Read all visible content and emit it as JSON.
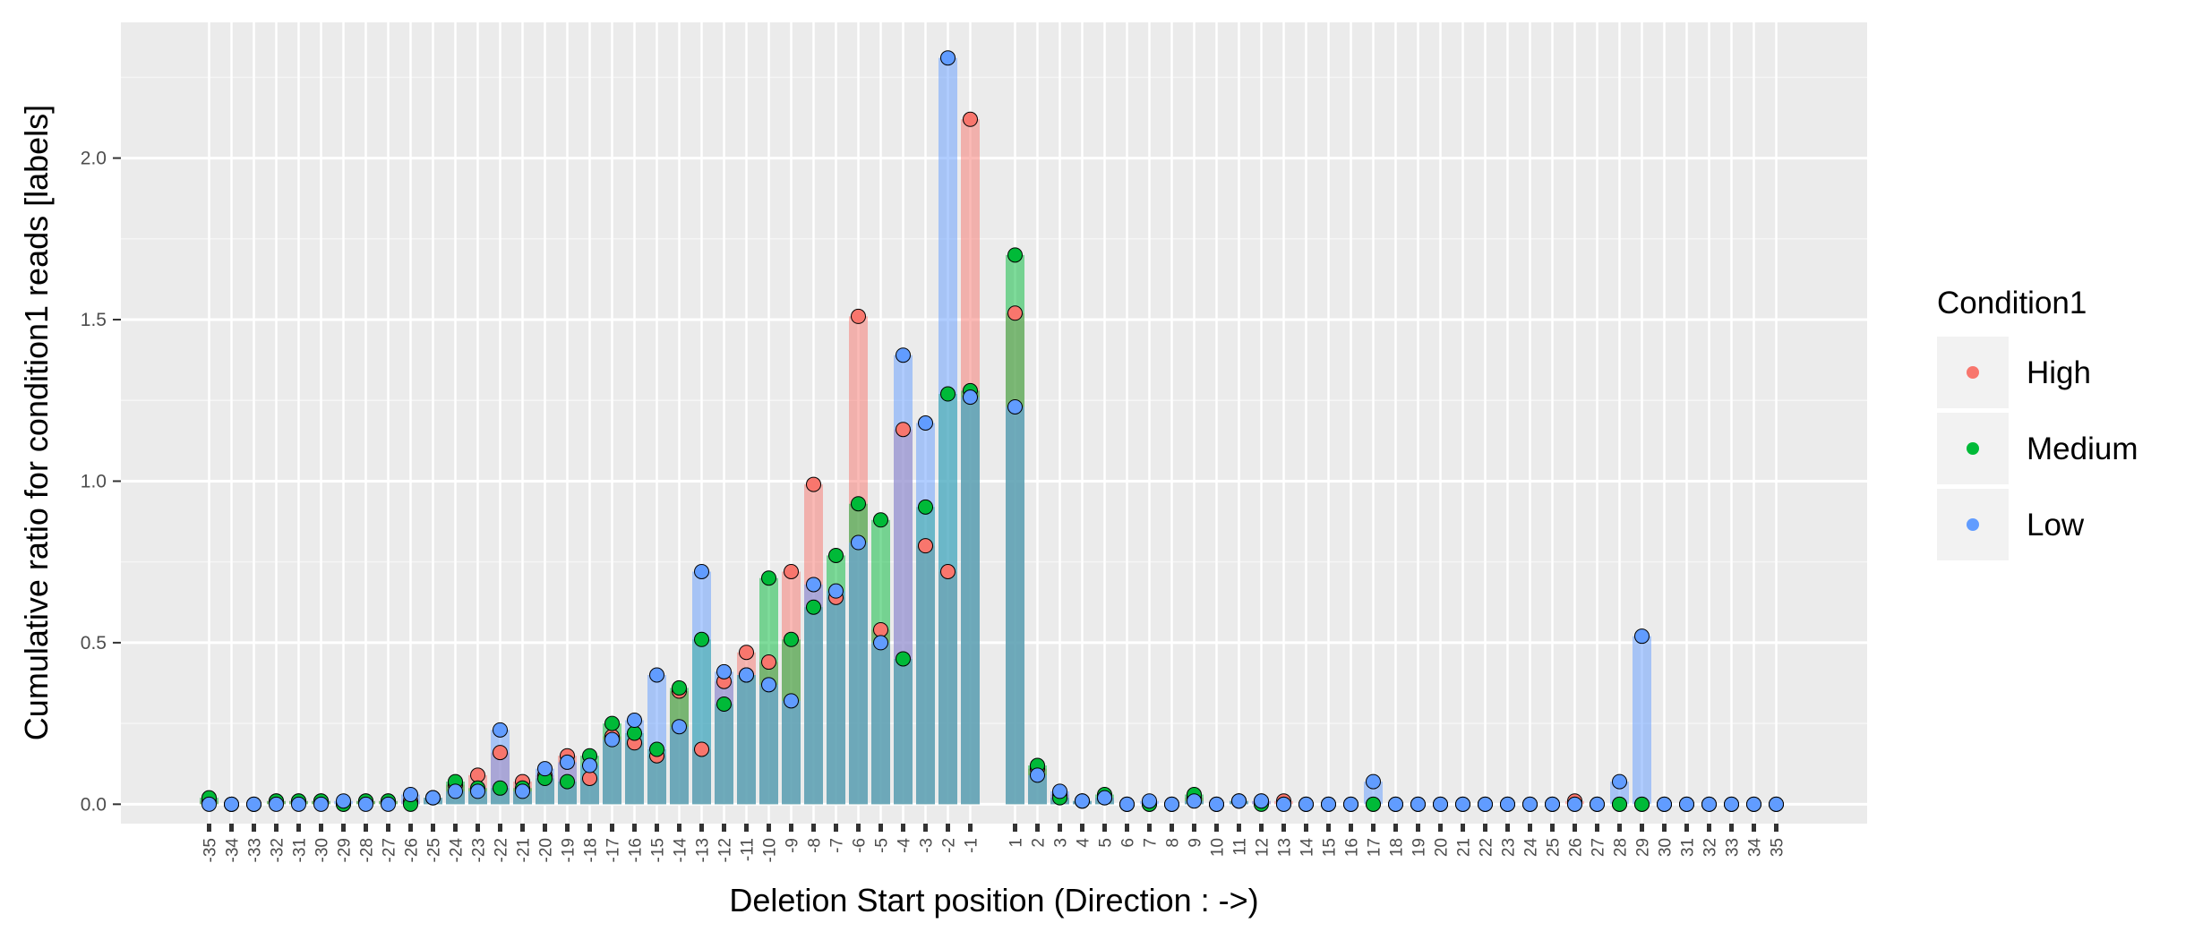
{
  "chart_data": {
    "type": "bar",
    "xlabel": "Deletion Start position (Direction : ->)",
    "ylabel": "Cumulative ratio for condition1 reads [labels]",
    "ylim": [
      -0.06,
      2.42
    ],
    "yticks": [
      "0.0",
      "0.5",
      "1.0",
      "1.5",
      "2.0"
    ],
    "ytick_values": [
      0,
      0.5,
      1.0,
      1.5,
      2.0
    ],
    "grid": true,
    "legend_position": "right",
    "legend_title": "Condition1",
    "categories": [
      "-35",
      "-34",
      "-33",
      "-32",
      "-31",
      "-30",
      "-29",
      "-28",
      "-27",
      "-26",
      "-25",
      "-24",
      "-23",
      "-22",
      "-21",
      "-20",
      "-19",
      "-18",
      "-17",
      "-16",
      "-15",
      "-14",
      "-13",
      "-12",
      "-11",
      "-10",
      "-9",
      "-8",
      "-7",
      "-6",
      "-5",
      "-4",
      "-3",
      "-2",
      "-1",
      "1",
      "2",
      "3",
      "4",
      "5",
      "6",
      "7",
      "8",
      "9",
      "10",
      "11",
      "12",
      "13",
      "14",
      "15",
      "16",
      "17",
      "18",
      "19",
      "20",
      "21",
      "22",
      "23",
      "24",
      "25",
      "26",
      "27",
      "28",
      "29",
      "30",
      "31",
      "32",
      "33",
      "34",
      "35"
    ],
    "series": [
      {
        "name": "High",
        "color": "#F8766D",
        "values": [
          0.01,
          0.0,
          0.0,
          0.01,
          0.01,
          0.01,
          0.0,
          0.01,
          0.01,
          0.01,
          0.02,
          0.06,
          0.09,
          0.16,
          0.07,
          0.09,
          0.15,
          0.08,
          0.21,
          0.19,
          0.15,
          0.35,
          0.17,
          0.38,
          0.47,
          0.44,
          0.72,
          0.99,
          0.64,
          1.51,
          0.54,
          1.16,
          0.8,
          0.72,
          2.12,
          1.52,
          0.11,
          0.03,
          0.01,
          0.02,
          0.0,
          0.0,
          0.0,
          0.02,
          0.0,
          0.01,
          0.01,
          0.01,
          0.0,
          0.0,
          0.0,
          0.0,
          0.0,
          0.0,
          0.0,
          0.0,
          0.0,
          0.0,
          0.0,
          0.0,
          0.01,
          0.0,
          0.0,
          0.0,
          0.0,
          0.0,
          0.0,
          0.0,
          0.0,
          0.0
        ]
      },
      {
        "name": "Medium",
        "color": "#00BA38",
        "values": [
          0.02,
          0.0,
          0.0,
          0.01,
          0.01,
          0.01,
          0.0,
          0.01,
          0.01,
          0.0,
          0.02,
          0.07,
          0.05,
          0.05,
          0.05,
          0.08,
          0.07,
          0.15,
          0.25,
          0.22,
          0.17,
          0.36,
          0.51,
          0.31,
          0.4,
          0.7,
          0.51,
          0.61,
          0.77,
          0.93,
          0.88,
          0.45,
          0.92,
          1.27,
          1.28,
          1.7,
          0.12,
          0.02,
          0.01,
          0.03,
          0.0,
          0.0,
          0.0,
          0.03,
          0.0,
          0.01,
          0.0,
          0.0,
          0.0,
          0.0,
          0.0,
          0.0,
          0.0,
          0.0,
          0.0,
          0.0,
          0.0,
          0.0,
          0.0,
          0.0,
          0.0,
          0.0,
          0.0,
          0.0,
          0.0,
          0.0,
          0.0,
          0.0,
          0.0,
          0.0
        ]
      },
      {
        "name": "Low",
        "color": "#619CFF",
        "values": [
          0.0,
          0.0,
          0.0,
          0.0,
          0.0,
          0.0,
          0.01,
          0.0,
          0.0,
          0.03,
          0.02,
          0.04,
          0.04,
          0.23,
          0.04,
          0.11,
          0.13,
          0.12,
          0.2,
          0.26,
          0.4,
          0.24,
          0.72,
          0.41,
          0.4,
          0.37,
          0.32,
          0.68,
          0.66,
          0.81,
          0.5,
          1.39,
          1.18,
          2.31,
          1.26,
          1.23,
          0.09,
          0.04,
          0.01,
          0.02,
          0.0,
          0.01,
          0.0,
          0.01,
          0.0,
          0.01,
          0.01,
          0.0,
          0.0,
          0.0,
          0.0,
          0.07,
          0.0,
          0.0,
          0.0,
          0.0,
          0.0,
          0.0,
          0.0,
          0.0,
          0.0,
          0.0,
          0.07,
          0.52,
          0.0,
          0.0,
          0.0,
          0.0,
          0.0,
          0.0
        ]
      }
    ]
  }
}
